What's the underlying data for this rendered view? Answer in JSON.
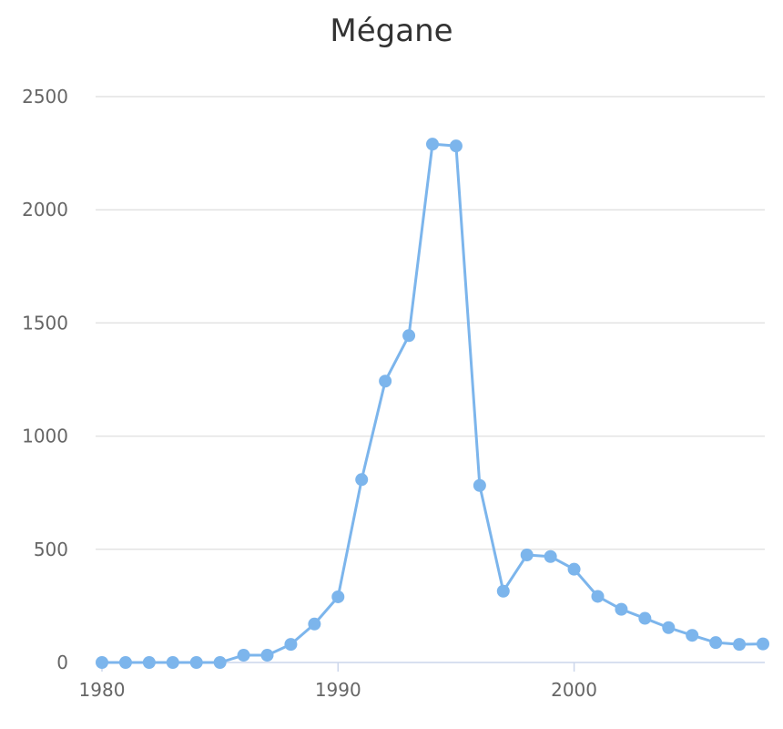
{
  "chart_data": {
    "type": "line",
    "title": "Mégane",
    "xlabel": "",
    "ylabel": "",
    "xlim": [
      1980,
      2008
    ],
    "ylim": [
      0,
      2500
    ],
    "x_ticks": [
      1980,
      1990,
      2000
    ],
    "y_ticks": [
      0,
      500,
      1000,
      1500,
      2000,
      2500
    ],
    "grid": true,
    "series": [
      {
        "color": "#7cb5ec",
        "x": [
          1980,
          1981,
          1982,
          1983,
          1984,
          1985,
          1986,
          1987,
          1988,
          1989,
          1990,
          1991,
          1992,
          1993,
          1994,
          1995,
          1996,
          1997,
          1998,
          1999,
          2000,
          2001,
          2002,
          2003,
          2004,
          2005,
          2006,
          2007,
          2008
        ],
        "y": [
          0,
          0,
          0,
          0,
          0,
          0,
          32,
          32,
          80,
          170,
          290,
          808,
          1243,
          1444,
          2290,
          2282,
          782,
          315,
          475,
          468,
          412,
          292,
          235,
          195,
          154,
          120,
          88,
          80,
          82
        ]
      }
    ]
  }
}
